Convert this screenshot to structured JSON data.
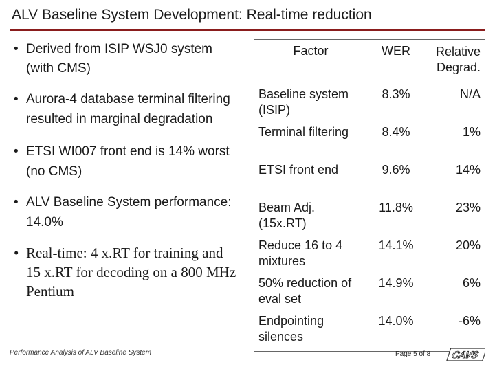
{
  "slide": {
    "title": "ALV Baseline System Development: Real-time reduction"
  },
  "bullets": [
    "Derived from ISIP WSJ0 system (with CMS)",
    "Aurora-4 database terminal filtering resulted in marginal degradation",
    "ETSI WI007 front end is 14% worst (no CMS)",
    "ALV Baseline System performance: 14.0%",
    "Real-time: 4 x.RT for training and 15 x.RT for decoding on a 800 MHz Pentium"
  ],
  "bullet_glyph": "•",
  "table": {
    "headers": [
      "Factor",
      "WER",
      "Relative Degrad."
    ],
    "rows": [
      [
        "Baseline system (ISIP)",
        "8.3%",
        "N/A"
      ],
      [
        "Terminal filtering",
        "8.4%",
        "1%"
      ],
      [
        "ETSI front end",
        "9.6%",
        "14%"
      ],
      [
        "Beam Adj. (15x.RT)",
        "11.8%",
        "23%"
      ],
      [
        "Reduce 16 to 4 mixtures",
        "14.1%",
        "20%"
      ],
      [
        "50% reduction of eval set",
        "14.9%",
        "6%"
      ],
      [
        "Endpointing silences",
        "14.0%",
        "-6%"
      ]
    ]
  },
  "footer": {
    "left": "Performance Analysis of ALV Baseline System",
    "page": "Page 5 of 8",
    "logo_text": "CAVS"
  },
  "colors": {
    "accent": "#8a1d1d"
  }
}
